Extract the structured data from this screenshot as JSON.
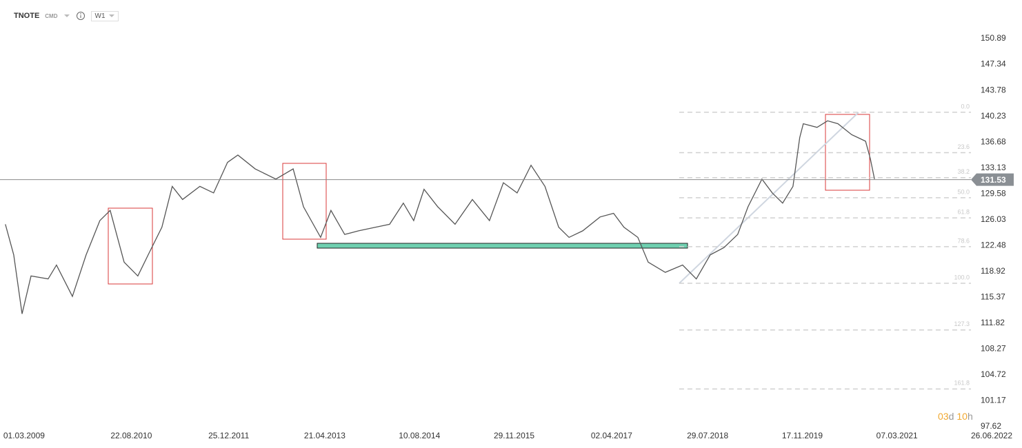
{
  "header": {
    "symbol": "TNOTE",
    "market": "CMD",
    "interval": "W1"
  },
  "timer": {
    "days": "03",
    "days_unit": "d",
    "hours": "10",
    "hours_unit": "h"
  },
  "chart_data": {
    "type": "line",
    "x": [
      "2008-11-27",
      "2009-01-08",
      "2009-02-19",
      "2009-04-05",
      "2009-06-30",
      "2009-08-11",
      "2009-10-30",
      "2010-01-07",
      "2010-03-17",
      "2010-05-08",
      "2010-07-17",
      "2010-09-24",
      "2010-11-15",
      "2011-01-23",
      "2011-03-16",
      "2011-05-07",
      "2011-08-02",
      "2011-10-10",
      "2011-12-19",
      "2012-02-09",
      "2012-05-06",
      "2012-08-18",
      "2012-11-13",
      "2013-01-04",
      "2013-03-31",
      "2013-05-22",
      "2013-07-30",
      "2013-10-08",
      "2014-01-02",
      "2014-03-13",
      "2014-05-21",
      "2014-07-12",
      "2014-09-02",
      "2014-11-10",
      "2015-02-05",
      "2015-05-03",
      "2015-07-28",
      "2015-10-06",
      "2015-12-14",
      "2016-02-22",
      "2016-05-02",
      "2016-07-10",
      "2016-08-31",
      "2016-11-08",
      "2017-02-03",
      "2017-04-12",
      "2017-06-03",
      "2017-08-12",
      "2017-10-03",
      "2017-12-28",
      "2018-03-25",
      "2018-06-02",
      "2018-08-11",
      "2018-10-19",
      "2018-12-27",
      "2019-02-17",
      "2019-04-28",
      "2019-06-19",
      "2019-08-10",
      "2019-10-01",
      "2019-11-04",
      "2019-11-22",
      "2020-01-30",
      "2020-03-23",
      "2020-05-14",
      "2020-07-22",
      "2020-09-30",
      "2020-10-24",
      "2020-11-14"
    ],
    "series": [
      {
        "color": "#555555",
        "values": [
          125.4,
          121.2,
          113.1,
          118.3,
          117.9,
          119.8,
          115.5,
          121.2,
          125.9,
          127.3,
          120.2,
          118.3,
          121.2,
          125.0,
          130.6,
          128.8,
          130.6,
          129.7,
          133.9,
          134.9,
          133.0,
          131.6,
          133.0,
          127.8,
          123.6,
          127.3,
          124.0,
          124.5,
          125.0,
          125.4,
          128.3,
          125.9,
          130.2,
          127.8,
          125.4,
          128.8,
          125.9,
          131.1,
          129.7,
          133.5,
          130.6,
          125.0,
          123.6,
          124.5,
          126.4,
          126.9,
          125.0,
          123.6,
          120.2,
          118.8,
          119.8,
          117.9,
          121.2,
          122.2,
          124.0,
          127.8,
          131.6,
          129.7,
          128.3,
          130.6,
          137.3,
          139.2,
          138.7,
          139.6,
          139.2,
          137.7,
          136.8,
          134.4,
          131.6
        ]
      }
    ],
    "xlim": [
      "2008-10-31",
      "2022-03-14"
    ],
    "ylim": [
      97.62,
      152.4
    ],
    "yticks": [
      150.89,
      147.34,
      143.78,
      140.23,
      136.68,
      133.13,
      129.58,
      126.03,
      122.48,
      118.92,
      115.37,
      111.82,
      108.27,
      104.72,
      101.17,
      97.62
    ],
    "xticks": [
      {
        "value": "2009-03-01",
        "label": "01.03.2009"
      },
      {
        "value": "2010-08-22",
        "label": "22.08.2010"
      },
      {
        "value": "2011-12-25",
        "label": "25.12.2011"
      },
      {
        "value": "2013-04-21",
        "label": "21.04.2013"
      },
      {
        "value": "2014-08-10",
        "label": "10.08.2014"
      },
      {
        "value": "2015-11-29",
        "label": "29.11.2015"
      },
      {
        "value": "2017-04-02",
        "label": "02.04.2017"
      },
      {
        "value": "2018-07-29",
        "label": "29.07.2018"
      },
      {
        "value": "2019-11-17",
        "label": "17.11.2019"
      },
      {
        "value": "2021-03-07",
        "label": "07.03.2021"
      },
      {
        "value": "2022-06-26",
        "label": "26.06.2022"
      }
    ],
    "current_price": 131.53,
    "fibonacci": {
      "start": "2018-03-08",
      "levels": [
        {
          "label": "0.0",
          "value": 140.77
        },
        {
          "label": "23.6",
          "value": 135.23
        },
        {
          "label": "38.2",
          "value": 131.8
        },
        {
          "label": "50.0",
          "value": 129.04
        },
        {
          "label": "61.8",
          "value": 126.27
        },
        {
          "label": "78.6",
          "value": 122.32
        },
        {
          "label": "100.0",
          "value": 117.3
        },
        {
          "label": "127.3",
          "value": 110.89
        },
        {
          "label": "161.8",
          "value": 102.79
        }
      ]
    }
  }
}
